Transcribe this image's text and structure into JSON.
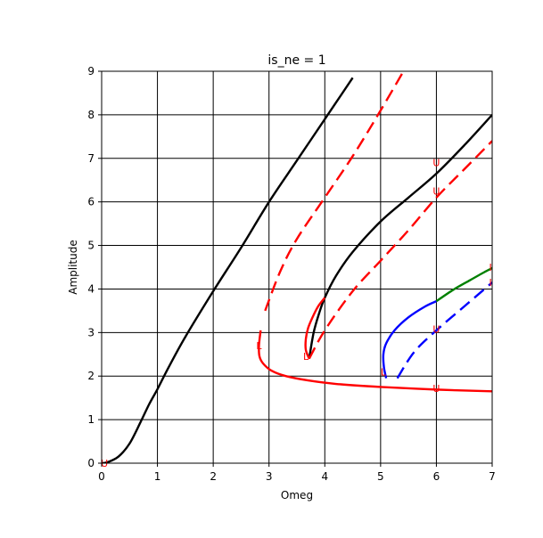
{
  "chart_data": {
    "type": "line",
    "title": "is_ne = 1",
    "xlabel": "Omeg",
    "ylabel": "Amplitude",
    "xlim": [
      0,
      7
    ],
    "ylim": [
      0,
      9
    ],
    "xticks": [
      "0",
      "1",
      "2",
      "3",
      "4",
      "5",
      "6",
      "7"
    ],
    "yticks": [
      "0",
      "1",
      "2",
      "3",
      "4",
      "5",
      "6",
      "7",
      "8",
      "9"
    ],
    "grid": true,
    "series": [
      {
        "color": "#000000",
        "style": "solid",
        "x": [
          0.0,
          0.1,
          0.3,
          0.5,
          0.7,
          0.85,
          1.0,
          1.2,
          1.5,
          2.0,
          2.5,
          3.0,
          3.5,
          4.0,
          4.5
        ],
        "y": [
          0.0,
          0.02,
          0.15,
          0.45,
          0.95,
          1.35,
          1.7,
          2.2,
          2.9,
          3.95,
          4.95,
          6.0,
          6.95,
          7.9,
          8.85
        ]
      },
      {
        "color": "#000000",
        "style": "solid",
        "x": [
          3.72,
          3.8,
          3.9,
          4.0,
          4.2,
          4.5,
          5.0,
          5.5,
          6.0,
          6.5,
          7.0
        ],
        "y": [
          2.4,
          3.0,
          3.45,
          3.8,
          4.3,
          4.85,
          5.55,
          6.1,
          6.65,
          7.3,
          8.0
        ]
      },
      {
        "color": "#ff0000",
        "style": "solid",
        "x": [
          2.85,
          2.82,
          2.83,
          2.9,
          3.05,
          3.3,
          3.7,
          4.2,
          5.0,
          6.0,
          7.0
        ],
        "y": [
          3.05,
          2.7,
          2.45,
          2.28,
          2.12,
          2.0,
          1.9,
          1.82,
          1.75,
          1.69,
          1.65
        ]
      },
      {
        "color": "#ff0000",
        "style": "solid",
        "x": [
          3.72,
          3.66,
          3.66,
          3.7,
          3.78,
          3.88,
          4.0
        ],
        "y": [
          2.4,
          2.6,
          2.85,
          3.1,
          3.35,
          3.6,
          3.8
        ]
      },
      {
        "color": "#ff0000",
        "style": "dashed",
        "x": [
          2.93,
          3.2,
          3.5,
          4.0,
          4.5,
          5.0,
          5.5
        ],
        "y": [
          3.5,
          4.4,
          5.15,
          6.1,
          7.05,
          8.1,
          9.2
        ]
      },
      {
        "color": "#ff0000",
        "style": "dashed",
        "x": [
          3.72,
          4.0,
          4.5,
          5.0,
          5.5,
          6.0,
          6.5,
          7.0
        ],
        "y": [
          2.4,
          3.05,
          3.95,
          4.65,
          5.35,
          6.1,
          6.75,
          7.4
        ]
      },
      {
        "color": "#0000ff",
        "style": "solid",
        "x": [
          5.1,
          5.06,
          5.05,
          5.1,
          5.25,
          5.5,
          5.8,
          6.0
        ],
        "y": [
          1.95,
          2.2,
          2.5,
          2.75,
          3.05,
          3.35,
          3.6,
          3.72
        ]
      },
      {
        "color": "#0000ff",
        "style": "dashed",
        "x": [
          5.3,
          5.6,
          6.0,
          6.5,
          7.0
        ],
        "y": [
          1.95,
          2.55,
          3.05,
          3.6,
          4.15
        ]
      },
      {
        "color": "#008000",
        "style": "solid",
        "x": [
          6.0,
          6.3,
          6.6,
          6.85,
          7.0
        ],
        "y": [
          3.72,
          3.98,
          4.2,
          4.38,
          4.48
        ]
      }
    ],
    "markers": [
      {
        "text": "U",
        "color": "#ff0000",
        "x": 0.05,
        "y": 0.0
      },
      {
        "text": "L",
        "color": "#ff0000",
        "x": 2.82,
        "y": 2.7
      },
      {
        "text": "L",
        "color": "#ff0000",
        "x": 3.66,
        "y": 2.45
      },
      {
        "text": "L",
        "color": "#ff0000",
        "x": 5.05,
        "y": 2.1
      },
      {
        "text": "U",
        "color": "#ff0000",
        "x": 6.0,
        "y": 6.9
      },
      {
        "text": "U",
        "color": "#ff0000",
        "x": 6.0,
        "y": 6.25
      },
      {
        "text": "U",
        "color": "#ff0000",
        "x": 6.0,
        "y": 3.08
      },
      {
        "text": "U",
        "color": "#ff0000",
        "x": 6.0,
        "y": 1.72
      },
      {
        "text": "I",
        "color": "#ff0000",
        "x": 6.97,
        "y": 4.5
      },
      {
        "text": "I",
        "color": "#ff0000",
        "x": 6.97,
        "y": 4.15
      }
    ]
  }
}
